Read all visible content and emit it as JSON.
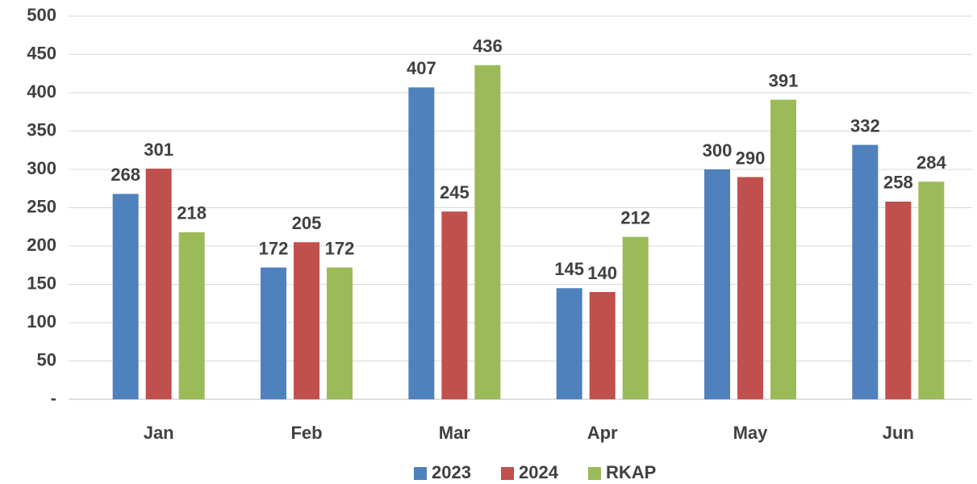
{
  "chart_data": {
    "type": "bar",
    "categories": [
      "Jan",
      "Feb",
      "Mar",
      "Apr",
      "May",
      "Jun"
    ],
    "series": [
      {
        "name": "2023",
        "color": "#4f81bd",
        "values": [
          268,
          172,
          407,
          145,
          300,
          332
        ]
      },
      {
        "name": "2024",
        "color": "#c0504d",
        "values": [
          301,
          205,
          245,
          140,
          290,
          258
        ]
      },
      {
        "name": "RKAP",
        "color": "#9bbb59",
        "values": [
          218,
          172,
          436,
          212,
          391,
          284
        ]
      }
    ],
    "ylim": [
      0,
      500
    ],
    "yticks": [
      {
        "value": 0,
        "label": "-"
      },
      50,
      100,
      150,
      200,
      250,
      300,
      350,
      400,
      450,
      500
    ],
    "grid": true,
    "legend": "bottom"
  }
}
